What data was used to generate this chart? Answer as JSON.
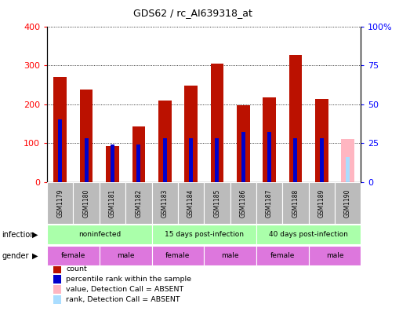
{
  "title": "GDS62 / rc_AI639318_at",
  "samples": [
    "GSM1179",
    "GSM1180",
    "GSM1181",
    "GSM1182",
    "GSM1183",
    "GSM1184",
    "GSM1185",
    "GSM1186",
    "GSM1187",
    "GSM1188",
    "GSM1189",
    "GSM1190"
  ],
  "count_values": [
    270,
    238,
    92,
    142,
    210,
    247,
    304,
    198,
    218,
    327,
    213,
    110
  ],
  "percentile_values": [
    40,
    28,
    24,
    24,
    28,
    28,
    28,
    32,
    32,
    28,
    28,
    16
  ],
  "is_absent": [
    false,
    false,
    false,
    false,
    false,
    false,
    false,
    false,
    false,
    false,
    false,
    true
  ],
  "bar_color_present": "#BB1100",
  "bar_color_absent": "#FFB6C1",
  "rank_color_present": "#0000CC",
  "rank_color_absent": "#AADDFF",
  "bar_width": 0.5,
  "rank_bar_width": 0.15,
  "ylim_left": [
    0,
    400
  ],
  "ylim_right": [
    0,
    100
  ],
  "yticks_left": [
    0,
    100,
    200,
    300,
    400
  ],
  "yticks_right": [
    0,
    25,
    50,
    75,
    100
  ],
  "ytick_labels_right": [
    "0",
    "25",
    "50",
    "75",
    "100%"
  ],
  "sample_label_bg": "#BBBBBB",
  "infection_groups": [
    {
      "label": "noninfected",
      "start": 0,
      "end": 3
    },
    {
      "label": "15 days post-infection",
      "start": 4,
      "end": 7
    },
    {
      "label": "40 days post-infection",
      "start": 8,
      "end": 11
    }
  ],
  "gender_groups": [
    {
      "label": "female",
      "start": 0,
      "end": 1
    },
    {
      "label": "male",
      "start": 2,
      "end": 3
    },
    {
      "label": "female",
      "start": 4,
      "end": 5
    },
    {
      "label": "male",
      "start": 6,
      "end": 7
    },
    {
      "label": "female",
      "start": 8,
      "end": 9
    },
    {
      "label": "male",
      "start": 10,
      "end": 11
    }
  ],
  "infection_color": "#AAFFAA",
  "gender_female_color": "#DD77DD",
  "gender_male_color": "#DD77DD",
  "legend_items": [
    {
      "color": "#BB1100",
      "label": "count"
    },
    {
      "color": "#0000CC",
      "label": "percentile rank within the sample"
    },
    {
      "color": "#FFB6C1",
      "label": "value, Detection Call = ABSENT"
    },
    {
      "color": "#AADDFF",
      "label": "rank, Detection Call = ABSENT"
    }
  ]
}
